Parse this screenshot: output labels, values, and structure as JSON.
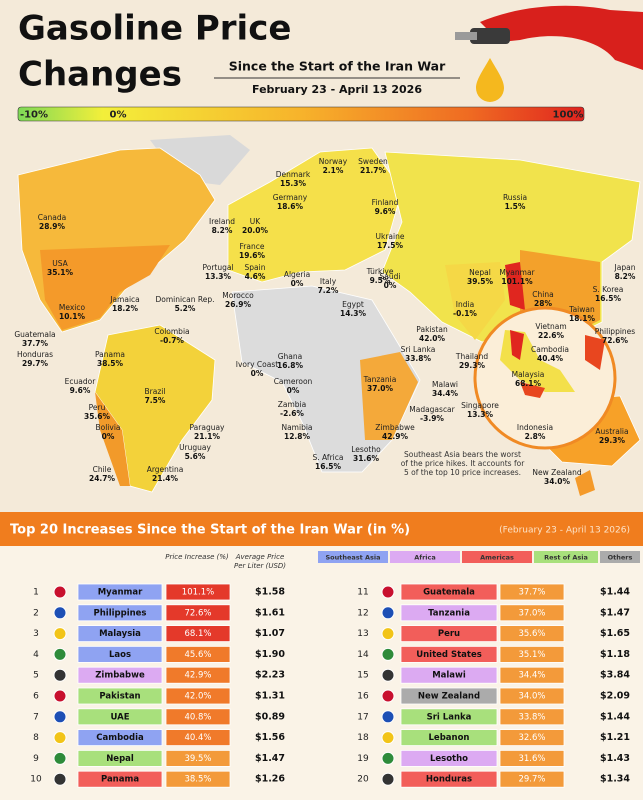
{
  "header": {
    "title_line1": "Gasoline Price",
    "title_line2": "Changes",
    "subtitle": "Since the Start of the Iran War",
    "dates": "February 23 - April 13 2026"
  },
  "scale": {
    "labels": [
      "-10%",
      "0%",
      "100%"
    ]
  },
  "map": {
    "labels": [
      {
        "name": "Norway",
        "value": "2.1%"
      },
      {
        "name": "Sweden",
        "value": "21.7%"
      },
      {
        "name": "Denmark",
        "value": "15.3%"
      },
      {
        "name": "Finland",
        "value": "9.6%"
      },
      {
        "name": "Germany",
        "value": "18.6%"
      },
      {
        "name": "Russia",
        "value": "1.5%"
      },
      {
        "name": "Canada",
        "value": "28.9%"
      },
      {
        "name": "Ireland",
        "value": "8.2%"
      },
      {
        "name": "UK",
        "value": "20.0%"
      },
      {
        "name": "France",
        "value": "19.6%"
      },
      {
        "name": "Ukraine",
        "value": "17.5%"
      },
      {
        "name": "Portugal",
        "value": "13.3%"
      },
      {
        "name": "Spain",
        "value": "4.6%"
      },
      {
        "name": "Italy",
        "value": "7.2%"
      },
      {
        "name": "Türkiye",
        "value": "9.5%"
      },
      {
        "name": "Nepal",
        "value": "39.5%"
      },
      {
        "name": "Myanmar",
        "value": "101.1%"
      },
      {
        "name": "Japan",
        "value": "8.2%"
      },
      {
        "name": "S. Korea",
        "value": "16.5%"
      },
      {
        "name": "USA",
        "value": "35.1%"
      },
      {
        "name": "Jamaica",
        "value": "18.2%"
      },
      {
        "name": "Dominican Rep.",
        "value": "5.2%"
      },
      {
        "name": "Morocco",
        "value": "26.9%"
      },
      {
        "name": "Algeria",
        "value": "0%"
      },
      {
        "name": "Egypt",
        "value": "14.3%"
      },
      {
        "name": "Saudi",
        "value": "0%"
      },
      {
        "name": "India",
        "value": "-0.1%"
      },
      {
        "name": "China",
        "value": "28%"
      },
      {
        "name": "Taiwan",
        "value": "18.1%"
      },
      {
        "name": "Mexico",
        "value": "10.1%"
      },
      {
        "name": "Colombia",
        "value": "-0.7%"
      },
      {
        "name": "Guatemala",
        "value": "37.7%"
      },
      {
        "name": "Honduras",
        "value": "29.7%"
      },
      {
        "name": "Panama",
        "value": "38.5%"
      },
      {
        "name": "Pakistan",
        "value": "42.0%"
      },
      {
        "name": "Vietnam",
        "value": "22.6%"
      },
      {
        "name": "Philippines",
        "value": "72.6%"
      },
      {
        "name": "Sri Lanka",
        "value": "33.8%"
      },
      {
        "name": "Thailand",
        "value": "29.3%"
      },
      {
        "name": "Cambodia",
        "value": "40.4%"
      },
      {
        "name": "Malaysia",
        "value": "68.1%"
      },
      {
        "name": "Ecuador",
        "value": "9.6%"
      },
      {
        "name": "Ivory Coast",
        "value": "0%"
      },
      {
        "name": "Ghana",
        "value": "16.8%"
      },
      {
        "name": "Cameroon",
        "value": "0%"
      },
      {
        "name": "Tanzania",
        "value": "37.0%"
      },
      {
        "name": "Malawi",
        "value": "34.4%"
      },
      {
        "name": "Brazil",
        "value": "7.5%"
      },
      {
        "name": "Peru",
        "value": "35.6%"
      },
      {
        "name": "Bolivia",
        "value": "0%"
      },
      {
        "name": "Zambia",
        "value": "-2.6%"
      },
      {
        "name": "Madagascar",
        "value": "-3.9%"
      },
      {
        "name": "Singapore",
        "value": "13.3%"
      },
      {
        "name": "Namibia",
        "value": "12.8%"
      },
      {
        "name": "Zimbabwe",
        "value": "42.9%"
      },
      {
        "name": "Indonesia",
        "value": "2.8%"
      },
      {
        "name": "Australia",
        "value": "29.3%"
      },
      {
        "name": "Paraguay",
        "value": "21.1%"
      },
      {
        "name": "Uruguay",
        "value": "5.6%"
      },
      {
        "name": "Argentina",
        "value": "21.4%"
      },
      {
        "name": "Chile",
        "value": "24.7%"
      },
      {
        "name": "S. Africa",
        "value": "16.5%"
      },
      {
        "name": "Lesotho",
        "value": "31.6%"
      },
      {
        "name": "New Zealand",
        "value": "34.0%"
      }
    ],
    "annotation": "Southeast Asia bears the worst of the price hikes. It accounts for 5 of the top 10 price increases."
  },
  "table": {
    "title": "Top 20 Increases Since the Start of the Iran War (in %)",
    "dates": "(February 23 - April 13 2026)",
    "columns": [
      "Price Increase (%)",
      "Average Price Per Liter (USD)"
    ],
    "regions": [
      {
        "name": "Southeast Asia",
        "color": "#8fa3f2"
      },
      {
        "name": "Africa",
        "color": "#dcaaf2"
      },
      {
        "name": "Americas",
        "color": "#f25e5a"
      },
      {
        "name": "Rest of Asia",
        "color": "#a8e07c"
      },
      {
        "name": "Others",
        "color": "#ababab"
      }
    ],
    "rows": [
      {
        "rank": 1,
        "country": "Myanmar",
        "increase": "101.1%",
        "price": "$1.58",
        "region": "Southeast Asia"
      },
      {
        "rank": 2,
        "country": "Philippines",
        "increase": "72.6%",
        "price": "$1.61",
        "region": "Southeast Asia"
      },
      {
        "rank": 3,
        "country": "Malaysia",
        "increase": "68.1%",
        "price": "$1.07",
        "region": "Southeast Asia"
      },
      {
        "rank": 4,
        "country": "Laos",
        "increase": "45.6%",
        "price": "$1.90",
        "region": "Southeast Asia"
      },
      {
        "rank": 5,
        "country": "Zimbabwe",
        "increase": "42.9%",
        "price": "$2.23",
        "region": "Africa"
      },
      {
        "rank": 6,
        "country": "Pakistan",
        "increase": "42.0%",
        "price": "$1.31",
        "region": "Rest of Asia"
      },
      {
        "rank": 7,
        "country": "UAE",
        "increase": "40.8%",
        "price": "$0.89",
        "region": "Rest of Asia"
      },
      {
        "rank": 8,
        "country": "Cambodia",
        "increase": "40.4%",
        "price": "$1.56",
        "region": "Southeast Asia"
      },
      {
        "rank": 9,
        "country": "Nepal",
        "increase": "39.5%",
        "price": "$1.47",
        "region": "Rest of Asia"
      },
      {
        "rank": 10,
        "country": "Panama",
        "increase": "38.5%",
        "price": "$1.26",
        "region": "Americas"
      },
      {
        "rank": 11,
        "country": "Guatemala",
        "increase": "37.7%",
        "price": "$1.44",
        "region": "Americas"
      },
      {
        "rank": 12,
        "country": "Tanzania",
        "increase": "37.0%",
        "price": "$1.47",
        "region": "Africa"
      },
      {
        "rank": 13,
        "country": "Peru",
        "increase": "35.6%",
        "price": "$1.65",
        "region": "Americas"
      },
      {
        "rank": 14,
        "country": "United States",
        "increase": "35.1%",
        "price": "$1.18",
        "region": "Americas"
      },
      {
        "rank": 15,
        "country": "Malawi",
        "increase": "34.4%",
        "price": "$3.84",
        "region": "Africa"
      },
      {
        "rank": 16,
        "country": "New Zealand",
        "increase": "34.0%",
        "price": "$2.09",
        "region": "Others"
      },
      {
        "rank": 17,
        "country": "Sri Lanka",
        "increase": "33.8%",
        "price": "$1.44",
        "region": "Rest of Asia"
      },
      {
        "rank": 18,
        "country": "Lebanon",
        "increase": "32.6%",
        "price": "$1.21",
        "region": "Rest of Asia"
      },
      {
        "rank": 19,
        "country": "Lesotho",
        "increase": "31.6%",
        "price": "$1.43",
        "region": "Africa"
      },
      {
        "rank": 20,
        "country": "Honduras",
        "increase": "29.7%",
        "price": "$1.34",
        "region": "Americas"
      }
    ]
  }
}
